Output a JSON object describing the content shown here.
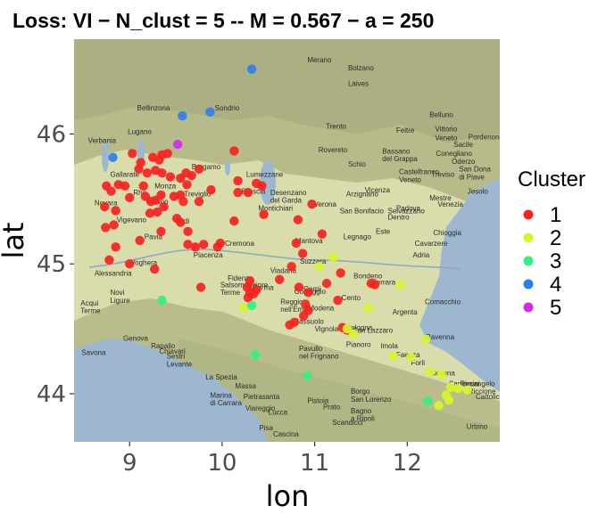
{
  "title": "Loss:  VI  − N_clust = 5  -- M = 0.567  − a = 250",
  "chart_data": {
    "type": "scatter",
    "title": "Loss:  VI  − N_clust = 5  -- M = 0.567  − a = 250",
    "xlabel": "lon",
    "ylabel": "lat",
    "xlim": [
      8.4,
      13.0
    ],
    "ylim": [
      43.63,
      46.73
    ],
    "xticks": [
      "9",
      "10",
      "11",
      "12"
    ],
    "yticks": [
      "44",
      "45",
      "46"
    ],
    "legend": {
      "title": "Cluster",
      "position": "right",
      "labels": [
        "1",
        "2",
        "3",
        "4",
        "5"
      ]
    },
    "colors": {
      "1": "#f8221f",
      "2": "#d6f52d",
      "3": "#33f17c",
      "4": "#2f7ef0",
      "5": "#cf2df0"
    },
    "basemap": "terrain",
    "basemap_labels": [
      {
        "t": "Merano",
        "lon": 10.92,
        "lat": 46.55
      },
      {
        "t": "Bolzano",
        "lon": 11.36,
        "lat": 46.49
      },
      {
        "t": "Laives",
        "lon": 11.36,
        "lat": 46.37
      },
      {
        "t": "Bellinzona",
        "lon": 9.08,
        "lat": 46.18
      },
      {
        "t": "Sondrio",
        "lon": 9.92,
        "lat": 46.18
      },
      {
        "t": "Belluno",
        "lon": 12.24,
        "lat": 46.13
      },
      {
        "t": "Lugano",
        "lon": 8.98,
        "lat": 46.0
      },
      {
        "t": "Trento",
        "lon": 11.12,
        "lat": 46.04
      },
      {
        "t": "Feltre",
        "lon": 11.88,
        "lat": 46.01
      },
      {
        "t": "Vittorio",
        "lon": 12.3,
        "lat": 46.02
      },
      {
        "t": "Veneto",
        "lon": 12.3,
        "lat": 45.95
      },
      {
        "t": "Pordenone",
        "lon": 12.66,
        "lat": 45.96
      },
      {
        "t": "Verbania",
        "lon": 8.55,
        "lat": 45.93
      },
      {
        "t": "Sacile",
        "lon": 12.5,
        "lat": 45.9
      },
      {
        "t": "Rovereto",
        "lon": 11.04,
        "lat": 45.86
      },
      {
        "t": "Bassano",
        "lon": 11.73,
        "lat": 45.85
      },
      {
        "t": "del Grappa",
        "lon": 11.73,
        "lat": 45.79
      },
      {
        "t": "Conegliano",
        "lon": 12.31,
        "lat": 45.83
      },
      {
        "t": "Schio",
        "lon": 11.36,
        "lat": 45.75
      },
      {
        "t": "Oderzo",
        "lon": 12.48,
        "lat": 45.77
      },
      {
        "t": "San Dona",
        "lon": 12.56,
        "lat": 45.71
      },
      {
        "t": "Treviso",
        "lon": 12.26,
        "lat": 45.67
      },
      {
        "t": "di Piave",
        "lon": 12.56,
        "lat": 45.65
      },
      {
        "t": "Castelfranco",
        "lon": 11.91,
        "lat": 45.69
      },
      {
        "t": "Veneto",
        "lon": 11.91,
        "lat": 45.63
      },
      {
        "t": "Bergamo",
        "lon": 9.67,
        "lat": 45.73
      },
      {
        "t": "Lumezzane",
        "lon": 10.26,
        "lat": 45.67
      },
      {
        "t": "Jesolo",
        "lon": 12.65,
        "lat": 45.54
      },
      {
        "t": "Gallarate",
        "lon": 8.79,
        "lat": 45.67
      },
      {
        "t": "Desenzano",
        "lon": 10.52,
        "lat": 45.53
      },
      {
        "t": "del Garda",
        "lon": 10.52,
        "lat": 45.47
      },
      {
        "t": "Vicenza",
        "lon": 11.54,
        "lat": 45.55
      },
      {
        "t": "Mestre",
        "lon": 12.24,
        "lat": 45.49
      },
      {
        "t": "Venezia",
        "lon": 12.33,
        "lat": 45.44
      },
      {
        "t": "Brescia",
        "lon": 10.21,
        "lat": 45.54
      },
      {
        "t": "Rho",
        "lon": 9.04,
        "lat": 45.53
      },
      {
        "t": "Monza",
        "lon": 9.27,
        "lat": 45.58
      },
      {
        "t": "Treviglio",
        "lon": 9.59,
        "lat": 45.52
      },
      {
        "t": "Padova",
        "lon": 11.88,
        "lat": 45.41
      },
      {
        "t": "Milano",
        "lon": 9.19,
        "lat": 45.46
      },
      {
        "t": "Novara",
        "lon": 8.62,
        "lat": 45.45
      },
      {
        "t": "Arzignano",
        "lon": 11.34,
        "lat": 45.52
      },
      {
        "t": "Montichiari",
        "lon": 10.39,
        "lat": 45.41
      },
      {
        "t": "Verona",
        "lon": 10.99,
        "lat": 45.44
      },
      {
        "t": "San Bonifacio",
        "lon": 11.27,
        "lat": 45.39
      },
      {
        "t": "Selvazzano",
        "lon": 11.79,
        "lat": 45.39
      },
      {
        "t": "Dentro",
        "lon": 11.79,
        "lat": 45.34
      },
      {
        "t": "Vigevano",
        "lon": 8.86,
        "lat": 45.32
      },
      {
        "t": "Lodi",
        "lon": 9.5,
        "lat": 45.31
      },
      {
        "t": "Legnago",
        "lon": 11.31,
        "lat": 45.19
      },
      {
        "t": "Este",
        "lon": 11.66,
        "lat": 45.23
      },
      {
        "t": "Chioggia",
        "lon": 12.28,
        "lat": 45.22
      },
      {
        "t": "Pavia",
        "lon": 9.16,
        "lat": 45.19
      },
      {
        "t": "Cremona",
        "lon": 10.03,
        "lat": 45.14
      },
      {
        "t": "Mantova",
        "lon": 10.79,
        "lat": 45.16
      },
      {
        "t": "Cavarzere",
        "lon": 12.08,
        "lat": 45.14
      },
      {
        "t": "Alessandria",
        "lon": 8.62,
        "lat": 44.91
      },
      {
        "t": "Piacenza",
        "lon": 9.69,
        "lat": 45.05
      },
      {
        "t": "Adria",
        "lon": 12.06,
        "lat": 45.05
      },
      {
        "t": "Voghera",
        "lon": 9.01,
        "lat": 44.99
      },
      {
        "t": "Viadana",
        "lon": 10.52,
        "lat": 44.93
      },
      {
        "t": "Suzzara",
        "lon": 10.84,
        "lat": 45.0
      },
      {
        "t": "Bondeno",
        "lon": 11.42,
        "lat": 44.89
      },
      {
        "t": "Novi",
        "lon": 8.79,
        "lat": 44.76
      },
      {
        "t": "Ligure",
        "lon": 8.79,
        "lat": 44.7
      },
      {
        "t": "Fidenza",
        "lon": 10.06,
        "lat": 44.87
      },
      {
        "t": "Carpi",
        "lon": 10.88,
        "lat": 44.79
      },
      {
        "t": "Ferrara",
        "lon": 11.62,
        "lat": 44.84
      },
      {
        "t": "Acqui",
        "lon": 8.47,
        "lat": 44.68
      },
      {
        "t": "Terme",
        "lon": 8.47,
        "lat": 44.62
      },
      {
        "t": "Salsomaggiore",
        "lon": 9.98,
        "lat": 44.82
      },
      {
        "t": "Terme",
        "lon": 9.98,
        "lat": 44.76
      },
      {
        "t": "Parma",
        "lon": 10.33,
        "lat": 44.8
      },
      {
        "t": "Correggio",
        "lon": 10.78,
        "lat": 44.77
      },
      {
        "t": "Cento",
        "lon": 11.29,
        "lat": 44.72
      },
      {
        "t": "Comacchio",
        "lon": 12.19,
        "lat": 44.69
      },
      {
        "t": "Argenta",
        "lon": 11.84,
        "lat": 44.61
      },
      {
        "t": "Reggio",
        "lon": 10.63,
        "lat": 44.69
      },
      {
        "t": "nell'Emilia",
        "lon": 10.63,
        "lat": 44.63
      },
      {
        "t": "Modena",
        "lon": 10.93,
        "lat": 44.64
      },
      {
        "t": "Sassuolo",
        "lon": 10.78,
        "lat": 44.54
      },
      {
        "t": "Bologna",
        "lon": 11.34,
        "lat": 44.49
      },
      {
        "t": "San Lazzaro",
        "lon": 11.41,
        "lat": 44.47
      },
      {
        "t": "Imola",
        "lon": 11.71,
        "lat": 44.35
      },
      {
        "t": "Ravenna",
        "lon": 12.2,
        "lat": 44.42
      },
      {
        "t": "Genova",
        "lon": 8.93,
        "lat": 44.41
      },
      {
        "t": "Rapallo",
        "lon": 9.23,
        "lat": 44.35
      },
      {
        "t": "Vignola",
        "lon": 11.0,
        "lat": 44.48
      },
      {
        "t": "Savona",
        "lon": 8.48,
        "lat": 44.3
      },
      {
        "t": "Chiavari",
        "lon": 9.32,
        "lat": 44.31
      },
      {
        "t": "Pavullo",
        "lon": 10.83,
        "lat": 44.33
      },
      {
        "t": "nel Frignano",
        "lon": 10.83,
        "lat": 44.27
      },
      {
        "t": "Pianoro",
        "lon": 11.34,
        "lat": 44.36
      },
      {
        "t": "Faenza",
        "lon": 11.88,
        "lat": 44.28
      },
      {
        "t": "Forli",
        "lon": 12.04,
        "lat": 44.22
      },
      {
        "t": "Cesena",
        "lon": 12.25,
        "lat": 44.14
      },
      {
        "t": "Sestri",
        "lon": 9.4,
        "lat": 44.27
      },
      {
        "t": "Levante",
        "lon": 9.4,
        "lat": 44.21
      },
      {
        "t": "La Spezia",
        "lon": 9.82,
        "lat": 44.11
      },
      {
        "t": "Rimini",
        "lon": 12.57,
        "lat": 44.06
      },
      {
        "t": "Riccione",
        "lon": 12.66,
        "lat": 44.0
      },
      {
        "t": "Santarcangelo",
        "lon": 12.45,
        "lat": 44.06
      },
      {
        "t": "Massa",
        "lon": 10.14,
        "lat": 44.04
      },
      {
        "t": "Borgo",
        "lon": 11.39,
        "lat": 44.0
      },
      {
        "t": "San Lorenzo",
        "lon": 11.39,
        "lat": 43.94
      },
      {
        "t": "Cattolica",
        "lon": 12.74,
        "lat": 43.96
      },
      {
        "t": "Marina",
        "lon": 9.87,
        "lat": 43.97
      },
      {
        "t": "di Carrara",
        "lon": 9.87,
        "lat": 43.91
      },
      {
        "t": "Pietrasanta",
        "lon": 10.23,
        "lat": 43.96
      },
      {
        "t": "Pistoia",
        "lon": 10.92,
        "lat": 43.93
      },
      {
        "t": "Lucca",
        "lon": 10.5,
        "lat": 43.84
      },
      {
        "t": "Prato",
        "lon": 11.09,
        "lat": 43.88
      },
      {
        "t": "Bagno",
        "lon": 11.39,
        "lat": 43.85
      },
      {
        "t": "a Ripoli",
        "lon": 11.39,
        "lat": 43.79
      },
      {
        "t": "Viareggio",
        "lon": 10.25,
        "lat": 43.87
      },
      {
        "t": "Urbino",
        "lon": 12.64,
        "lat": 43.73
      },
      {
        "t": "Pisa",
        "lon": 10.4,
        "lat": 43.72
      },
      {
        "t": "Scandicci",
        "lon": 11.19,
        "lat": 43.76
      },
      {
        "t": "Cascina",
        "lon": 10.55,
        "lat": 43.67
      }
    ],
    "series": [
      {
        "name": "1",
        "points": [
          [
            9.03,
            45.85
          ],
          [
            9.12,
            45.78
          ],
          [
            9.25,
            45.82
          ],
          [
            9.32,
            45.8
          ],
          [
            9.35,
            45.84
          ],
          [
            9.41,
            45.85
          ],
          [
            9.1,
            45.73
          ],
          [
            9.19,
            45.7
          ],
          [
            9.28,
            45.72
          ],
          [
            9.35,
            45.7
          ],
          [
            9.44,
            45.67
          ],
          [
            9.55,
            45.66
          ],
          [
            9.61,
            45.7
          ],
          [
            9.67,
            45.68
          ],
          [
            9.75,
            45.73
          ],
          [
            9.62,
            45.61
          ],
          [
            9.55,
            45.53
          ],
          [
            9.58,
            45.48
          ],
          [
            9.75,
            45.48
          ],
          [
            9.88,
            45.57
          ],
          [
            10.13,
            45.87
          ],
          [
            10.17,
            45.64
          ],
          [
            10.28,
            45.55
          ],
          [
            10.37,
            45.62
          ],
          [
            10.43,
            45.6
          ],
          [
            10.17,
            45.55
          ],
          [
            8.75,
            45.6
          ],
          [
            8.8,
            45.56
          ],
          [
            8.88,
            45.61
          ],
          [
            8.95,
            45.6
          ],
          [
            9.0,
            45.51
          ],
          [
            9.17,
            45.52
          ],
          [
            9.23,
            45.48
          ],
          [
            9.28,
            45.49
          ],
          [
            9.34,
            45.53
          ],
          [
            9.22,
            45.39
          ],
          [
            9.3,
            45.4
          ],
          [
            9.37,
            45.44
          ],
          [
            9.15,
            45.6
          ],
          [
            9.48,
            45.52
          ],
          [
            8.73,
            45.44
          ],
          [
            8.85,
            45.41
          ],
          [
            8.83,
            45.3
          ],
          [
            8.74,
            45.28
          ],
          [
            8.85,
            45.13
          ],
          [
            9.11,
            45.18
          ],
          [
            9.34,
            45.25
          ],
          [
            9.51,
            45.35
          ],
          [
            9.55,
            45.32
          ],
          [
            9.63,
            45.25
          ],
          [
            9.63,
            45.15
          ],
          [
            9.71,
            45.13
          ],
          [
            9.8,
            45.15
          ],
          [
            9.95,
            45.13
          ],
          [
            9.98,
            45.16
          ],
          [
            8.78,
            45.03
          ],
          [
            9.0,
            45.0
          ],
          [
            9.27,
            44.96
          ],
          [
            10.13,
            45.33
          ],
          [
            10.45,
            45.38
          ],
          [
            10.97,
            45.46
          ],
          [
            10.82,
            45.34
          ],
          [
            11.08,
            45.23
          ],
          [
            10.8,
            45.16
          ],
          [
            10.87,
            45.08
          ],
          [
            10.75,
            44.98
          ],
          [
            10.62,
            44.88
          ],
          [
            10.83,
            44.82
          ],
          [
            10.3,
            44.87
          ],
          [
            10.27,
            44.82
          ],
          [
            10.3,
            44.78
          ],
          [
            10.34,
            44.77
          ],
          [
            10.37,
            44.8
          ],
          [
            10.28,
            44.74
          ],
          [
            9.77,
            44.82
          ],
          [
            11.13,
            44.85
          ],
          [
            11.28,
            44.93
          ],
          [
            11.25,
            44.72
          ],
          [
            10.9,
            44.69
          ],
          [
            10.93,
            44.64
          ],
          [
            10.88,
            44.6
          ],
          [
            10.78,
            44.55
          ],
          [
            10.73,
            44.53
          ],
          [
            10.93,
            44.78
          ],
          [
            11.65,
            44.84
          ],
          [
            11.61,
            44.85
          ],
          [
            11.35,
            44.49
          ],
          [
            11.3,
            44.51
          ]
        ]
      },
      {
        "name": "2",
        "points": [
          [
            11.2,
            45.05
          ],
          [
            11.05,
            44.98
          ],
          [
            11.58,
            44.66
          ],
          [
            11.93,
            44.84
          ],
          [
            11.35,
            44.5
          ],
          [
            11.42,
            44.46
          ],
          [
            10.23,
            44.66
          ],
          [
            11.85,
            44.29
          ],
          [
            12.04,
            44.28
          ],
          [
            12.2,
            44.42
          ],
          [
            12.25,
            44.17
          ],
          [
            12.37,
            44.15
          ],
          [
            12.47,
            44.05
          ],
          [
            12.55,
            44.04
          ],
          [
            12.65,
            44.03
          ],
          [
            12.42,
            43.99
          ],
          [
            12.45,
            43.95
          ],
          [
            12.34,
            43.91
          ]
        ]
      },
      {
        "name": "3",
        "points": [
          [
            9.35,
            44.72
          ],
          [
            10.36,
            44.3
          ],
          [
            10.92,
            44.14
          ],
          [
            12.22,
            43.94
          ],
          [
            10.32,
            44.68
          ]
        ]
      },
      {
        "name": "4",
        "points": [
          [
            10.32,
            46.5
          ],
          [
            9.87,
            46.17
          ],
          [
            9.57,
            46.14
          ],
          [
            8.82,
            45.82
          ]
        ]
      },
      {
        "name": "5",
        "points": [
          [
            9.52,
            45.92
          ]
        ]
      }
    ]
  }
}
